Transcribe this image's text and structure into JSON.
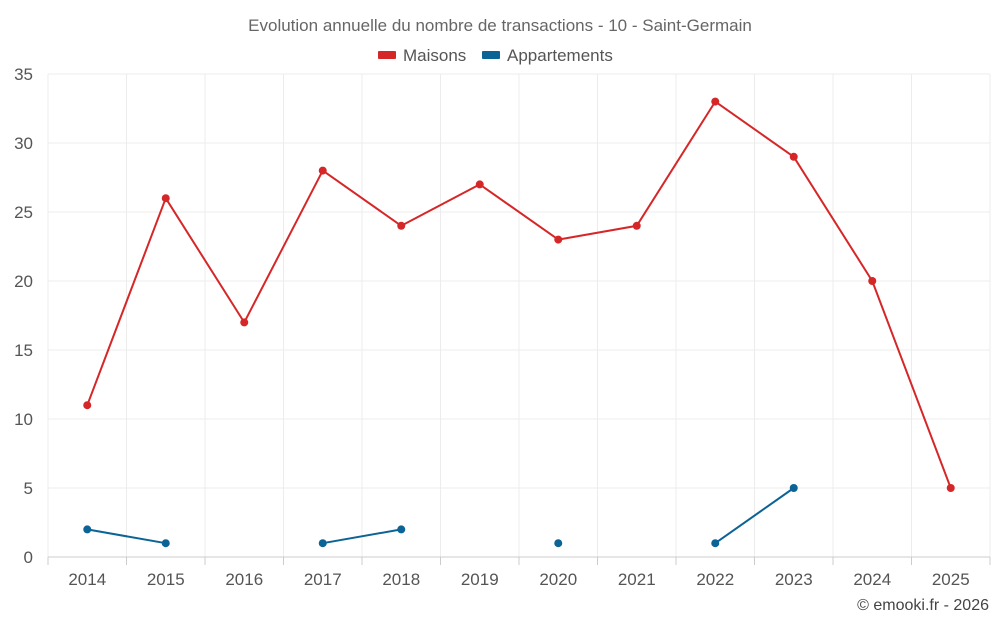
{
  "chart_data": {
    "type": "line",
    "title": "Evolution annuelle du nombre de transactions - 10 - Saint-Germain",
    "x": [
      "2014",
      "2015",
      "2016",
      "2017",
      "2018",
      "2019",
      "2020",
      "2021",
      "2022",
      "2023",
      "2024",
      "2025"
    ],
    "series": [
      {
        "name": "Maisons",
        "color": "#d62728",
        "values": [
          11,
          26,
          17,
          28,
          24,
          27,
          23,
          24,
          33,
          29,
          20,
          5
        ]
      },
      {
        "name": "Appartements",
        "color": "#0b6396",
        "values": [
          2,
          1,
          null,
          1,
          2,
          null,
          1,
          null,
          1,
          5,
          null,
          null
        ]
      }
    ],
    "ylim": [
      0,
      35
    ],
    "yticks": [
      0,
      5,
      10,
      15,
      20,
      25,
      30,
      35
    ],
    "grid": true,
    "legend_position": "top-center",
    "xlabel": "",
    "ylabel": ""
  },
  "credit": "© emooki.fr - 2026"
}
